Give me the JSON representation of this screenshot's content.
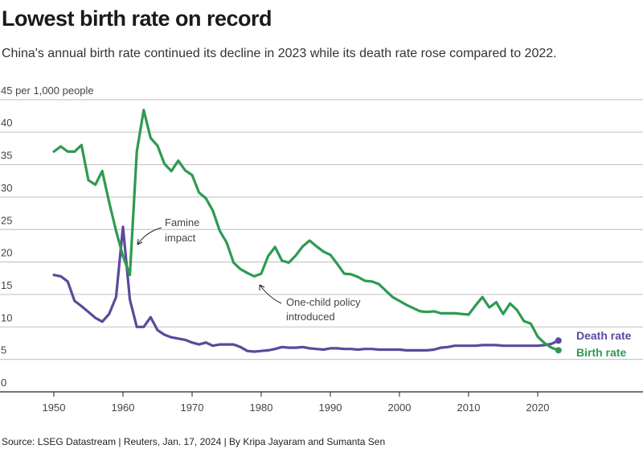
{
  "header": {
    "title": "Lowest birth rate on record",
    "subtitle": "China's annual birth rate continued its decline in 2023 while its death rate rose compared to 2022."
  },
  "footer": {
    "source": "Source: LSEG Datastream | Reuters, Jan. 17, 2024 | By Kripa Jayaram and Sumanta Sen"
  },
  "colors": {
    "birth": "#2e9a52",
    "death": "#5a4a9c"
  },
  "chart_data": {
    "type": "line",
    "title": "Lowest birth rate on record",
    "subtitle": "China's annual birth rate continued its decline in 2023 while its death rate rose compared to 2022.",
    "ylabel": "per 1,000 people",
    "ylim": [
      0,
      45
    ],
    "xlim": [
      1945,
      2030
    ],
    "grid": true,
    "y_ticks": [
      0,
      5,
      10,
      15,
      20,
      25,
      30,
      35,
      40,
      45
    ],
    "y_tick_labels": [
      "0",
      "5",
      "10",
      "15",
      "20",
      "25",
      "30",
      "35",
      "40",
      "45 per 1,000 people"
    ],
    "x_ticks": [
      1950,
      1960,
      1970,
      1980,
      1990,
      2000,
      2010,
      2020
    ],
    "x_tick_labels": [
      "1950",
      "1960",
      "1970",
      "1980",
      "1990",
      "2000",
      "2010",
      "2020"
    ],
    "legend": "end-of-line labels",
    "x": [
      1950,
      1951,
      1952,
      1953,
      1954,
      1955,
      1956,
      1957,
      1958,
      1959,
      1960,
      1961,
      1962,
      1963,
      1964,
      1965,
      1966,
      1967,
      1968,
      1969,
      1970,
      1971,
      1972,
      1973,
      1974,
      1975,
      1976,
      1977,
      1978,
      1979,
      1980,
      1981,
      1982,
      1983,
      1984,
      1985,
      1986,
      1987,
      1988,
      1989,
      1990,
      1991,
      1992,
      1993,
      1994,
      1995,
      1996,
      1997,
      1998,
      1999,
      2000,
      2001,
      2002,
      2003,
      2004,
      2005,
      2006,
      2007,
      2008,
      2009,
      2010,
      2011,
      2012,
      2013,
      2014,
      2015,
      2016,
      2017,
      2018,
      2019,
      2020,
      2021,
      2022,
      2023
    ],
    "series": [
      {
        "name": "Birth rate",
        "color": "#2e9a52",
        "values": [
          37.0,
          37.8,
          37.0,
          37.0,
          38.0,
          32.6,
          31.9,
          34.0,
          29.2,
          24.8,
          20.9,
          18.0,
          37.0,
          43.4,
          39.1,
          37.9,
          35.1,
          34.0,
          35.6,
          34.1,
          33.4,
          30.7,
          29.8,
          27.9,
          24.8,
          23.0,
          19.9,
          18.9,
          18.3,
          17.8,
          18.2,
          20.9,
          22.3,
          20.2,
          19.9,
          21.0,
          22.4,
          23.3,
          22.4,
          21.6,
          21.1,
          19.7,
          18.2,
          18.1,
          17.7,
          17.1,
          17.0,
          16.6,
          15.6,
          14.6,
          14.0,
          13.4,
          12.9,
          12.4,
          12.3,
          12.4,
          12.1,
          12.1,
          12.1,
          12.0,
          11.9,
          13.3,
          14.6,
          13.0,
          13.8,
          12.0,
          13.6,
          12.6,
          10.9,
          10.5,
          8.5,
          7.5,
          6.8,
          6.4
        ]
      },
      {
        "name": "Death rate",
        "color": "#5a4a9c",
        "values": [
          18.0,
          17.8,
          17.0,
          14.0,
          13.2,
          12.3,
          11.4,
          10.8,
          12.0,
          14.6,
          25.4,
          14.2,
          10.0,
          10.0,
          11.5,
          9.5,
          8.8,
          8.4,
          8.2,
          8.0,
          7.6,
          7.3,
          7.6,
          7.1,
          7.3,
          7.3,
          7.3,
          6.9,
          6.3,
          6.2,
          6.3,
          6.4,
          6.6,
          6.9,
          6.8,
          6.8,
          6.9,
          6.7,
          6.6,
          6.5,
          6.7,
          6.7,
          6.6,
          6.6,
          6.5,
          6.6,
          6.6,
          6.5,
          6.5,
          6.5,
          6.5,
          6.4,
          6.4,
          6.4,
          6.4,
          6.5,
          6.8,
          6.9,
          7.1,
          7.1,
          7.1,
          7.1,
          7.2,
          7.2,
          7.2,
          7.1,
          7.1,
          7.1,
          7.1,
          7.1,
          7.1,
          7.2,
          7.4,
          7.9
        ]
      }
    ],
    "annotations": [
      {
        "text": [
          "Famine",
          "impact"
        ],
        "x": 1961,
        "y": 22
      },
      {
        "text": [
          "One-child policy",
          "introduced"
        ],
        "x": 1980,
        "y": 16
      }
    ],
    "end_labels": [
      "Death rate",
      "Birth rate"
    ]
  }
}
